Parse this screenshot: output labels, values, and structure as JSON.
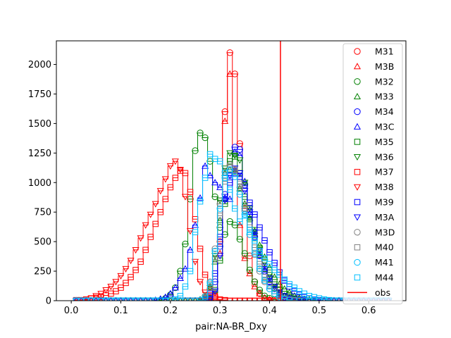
{
  "chart_data": {
    "type": "line",
    "title": "",
    "xlabel": "pair:NA-BR_Dxy",
    "ylabel": "",
    "xlim": [
      -0.03,
      0.675
    ],
    "ylim": [
      0,
      2200
    ],
    "x_ticks": [
      0.0,
      0.1,
      0.2,
      0.3,
      0.4,
      0.5,
      0.6
    ],
    "x_tick_labels": [
      "0.0",
      "0.1",
      "0.2",
      "0.3",
      "0.4",
      "0.5",
      "0.6"
    ],
    "y_ticks": [
      0,
      250,
      500,
      750,
      1000,
      1250,
      1500,
      1750,
      2000
    ],
    "y_tick_labels": [
      "0",
      "250",
      "500",
      "750",
      "1000",
      "1250",
      "1500",
      "1750",
      "2000"
    ],
    "grid": false,
    "legend_position": "upper right",
    "drawstyle": "steps-mid with markers",
    "bin_centers": [
      0.01,
      0.02,
      0.03,
      0.04,
      0.05,
      0.06,
      0.07,
      0.08,
      0.09,
      0.1,
      0.11,
      0.12,
      0.13,
      0.14,
      0.15,
      0.16,
      0.17,
      0.18,
      0.19,
      0.2,
      0.21,
      0.22,
      0.23,
      0.24,
      0.25,
      0.26,
      0.27,
      0.28,
      0.29,
      0.3,
      0.31,
      0.32,
      0.33,
      0.34,
      0.35,
      0.36,
      0.37,
      0.38,
      0.39,
      0.4,
      0.41,
      0.42,
      0.43,
      0.44,
      0.45,
      0.46,
      0.47,
      0.48,
      0.49,
      0.5,
      0.51,
      0.52,
      0.53,
      0.54,
      0.55,
      0.56,
      0.57,
      0.58,
      0.59,
      0.6,
      0.61,
      0.62,
      0.63,
      0.64
    ],
    "series": [
      {
        "name": "M31",
        "color": "#ff0000",
        "marker": "circle",
        "values": [
          0,
          0,
          0,
          0,
          0,
          0,
          0,
          0,
          0,
          0,
          0,
          0,
          0,
          0,
          0,
          0,
          0,
          0,
          0,
          0,
          0,
          0,
          0,
          0,
          0,
          0,
          0,
          5,
          20,
          500,
          1600,
          2100,
          1920,
          1330,
          780,
          380,
          160,
          60,
          20,
          5,
          0,
          0,
          0,
          0,
          0,
          0,
          0,
          0,
          0,
          0,
          0,
          0,
          0,
          0,
          0,
          0,
          0,
          0,
          0,
          0,
          0,
          0,
          0,
          0
        ]
      },
      {
        "name": "M3B",
        "color": "#ff0000",
        "marker": "triangle-up",
        "values": [
          0,
          0,
          0,
          0,
          0,
          0,
          0,
          0,
          0,
          0,
          0,
          0,
          0,
          0,
          0,
          0,
          0,
          0,
          0,
          0,
          0,
          0,
          0,
          0,
          0,
          0,
          0,
          10,
          60,
          400,
          1520,
          1920,
          1110,
          640,
          360,
          230,
          120,
          60,
          25,
          10,
          0,
          0,
          0,
          0,
          0,
          0,
          0,
          0,
          0,
          0,
          0,
          0,
          0,
          0,
          0,
          0,
          0,
          0,
          0,
          0,
          0,
          0,
          0,
          0
        ]
      },
      {
        "name": "M32",
        "color": "#008000",
        "marker": "circle",
        "values": [
          0,
          0,
          0,
          0,
          0,
          0,
          0,
          0,
          0,
          0,
          0,
          0,
          0,
          0,
          0,
          0,
          0,
          5,
          20,
          50,
          110,
          250,
          480,
          860,
          1270,
          1420,
          1380,
          1180,
          880,
          620,
          560,
          670,
          640,
          520,
          400,
          260,
          160,
          90,
          40,
          20,
          10,
          5,
          0,
          0,
          0,
          0,
          0,
          0,
          0,
          0,
          0,
          0,
          0,
          0,
          0,
          0,
          0,
          0,
          0,
          0,
          0,
          0,
          0,
          0
        ]
      },
      {
        "name": "M33",
        "color": "#008000",
        "marker": "triangle-up",
        "values": [
          0,
          0,
          0,
          0,
          0,
          0,
          0,
          0,
          0,
          0,
          0,
          0,
          0,
          0,
          0,
          0,
          0,
          0,
          0,
          0,
          0,
          0,
          0,
          0,
          0,
          10,
          40,
          120,
          330,
          680,
          1080,
          1110,
          1090,
          950,
          820,
          700,
          590,
          470,
          370,
          280,
          200,
          140,
          100,
          70,
          40,
          25,
          15,
          10,
          5,
          0,
          0,
          0,
          0,
          0,
          0,
          0,
          0,
          0,
          0,
          0,
          0,
          0,
          0
        ]
      },
      {
        "name": "M34",
        "color": "#0000ff",
        "marker": "circle",
        "values": [
          0,
          0,
          0,
          0,
          0,
          0,
          0,
          0,
          0,
          0,
          0,
          0,
          0,
          0,
          0,
          0,
          0,
          0,
          0,
          0,
          0,
          0,
          0,
          0,
          0,
          0,
          0,
          20,
          160,
          460,
          900,
          1060,
          1300,
          1280,
          980,
          730,
          540,
          380,
          250,
          160,
          100,
          60,
          30,
          15,
          5,
          0,
          0,
          0,
          0,
          0,
          0,
          0,
          0,
          0,
          0,
          0,
          0,
          0,
          0,
          0,
          0,
          0,
          0,
          0
        ]
      },
      {
        "name": "M3C",
        "color": "#0000ff",
        "marker": "triangle-up",
        "values": [
          0,
          0,
          0,
          0,
          0,
          0,
          0,
          0,
          0,
          0,
          0,
          0,
          0,
          0,
          0,
          0,
          5,
          15,
          30,
          60,
          110,
          190,
          270,
          430,
          640,
          870,
          1140,
          1060,
          1000,
          960,
          870,
          860,
          1260,
          1230,
          1010,
          770,
          560,
          380,
          260,
          160,
          100,
          60,
          40,
          25,
          15,
          10,
          5,
          0,
          0,
          0,
          0,
          0,
          0,
          0,
          0,
          0,
          0,
          0,
          0,
          0,
          0,
          0,
          0,
          0
        ]
      },
      {
        "name": "M35",
        "color": "#008000",
        "marker": "square",
        "values": [
          0,
          0,
          0,
          0,
          0,
          0,
          0,
          0,
          0,
          0,
          0,
          0,
          0,
          0,
          0,
          0,
          0,
          0,
          0,
          0,
          0,
          0,
          0,
          0,
          0,
          0,
          0,
          20,
          90,
          340,
          820,
          1180,
          1220,
          1080,
          880,
          690,
          530,
          390,
          270,
          180,
          110,
          70,
          40,
          20,
          10,
          5,
          0,
          0,
          0,
          0,
          0,
          0,
          0,
          0,
          0,
          0,
          0,
          0,
          0,
          0,
          0,
          0,
          0,
          0
        ]
      },
      {
        "name": "M36",
        "color": "#008000",
        "marker": "triangle-down",
        "values": [
          0,
          0,
          0,
          0,
          0,
          0,
          0,
          0,
          0,
          0,
          0,
          0,
          0,
          0,
          0,
          0,
          0,
          0,
          0,
          0,
          0,
          0,
          0,
          0,
          0,
          0,
          20,
          110,
          380,
          850,
          1120,
          1250,
          1230,
          1190,
          1000,
          780,
          600,
          440,
          320,
          220,
          140,
          90,
          60,
          40,
          20,
          10,
          5,
          0,
          0,
          0,
          0,
          0,
          0,
          0,
          0,
          0,
          0,
          0,
          0,
          0,
          0,
          0,
          0,
          0
        ]
      },
      {
        "name": "M37",
        "color": "#ff0000",
        "marker": "square",
        "values": [
          5,
          5,
          10,
          20,
          25,
          30,
          45,
          60,
          80,
          110,
          150,
          200,
          260,
          330,
          430,
          540,
          650,
          750,
          860,
          960,
          1040,
          1100,
          1080,
          920,
          690,
          440,
          220,
          90,
          30,
          10,
          5,
          0,
          0,
          0,
          0,
          0,
          0,
          0,
          0,
          0,
          0,
          0,
          0,
          0,
          0,
          0,
          0,
          0,
          0,
          0,
          0,
          0,
          0,
          0,
          0,
          0,
          0,
          0,
          0,
          0,
          0,
          0,
          0,
          0
        ]
      },
      {
        "name": "M38",
        "color": "#ff0000",
        "marker": "triangle-down",
        "values": [
          0,
          0,
          5,
          20,
          40,
          60,
          90,
          120,
          160,
          210,
          270,
          340,
          430,
          530,
          640,
          730,
          820,
          930,
          1030,
          1140,
          1180,
          1110,
          880,
          590,
          330,
          160,
          70,
          30,
          10,
          5,
          0,
          0,
          0,
          0,
          0,
          0,
          0,
          0,
          0,
          0,
          0,
          0,
          0,
          0,
          0,
          0,
          0,
          0,
          0,
          0,
          0,
          0,
          0,
          0,
          0,
          0,
          0,
          0,
          0,
          0,
          0,
          0,
          0,
          0
        ]
      },
      {
        "name": "M39",
        "color": "#0000ff",
        "marker": "square",
        "values": [
          0,
          0,
          0,
          0,
          0,
          0,
          0,
          0,
          0,
          0,
          0,
          0,
          0,
          0,
          0,
          0,
          0,
          0,
          0,
          0,
          0,
          0,
          0,
          0,
          0,
          0,
          10,
          60,
          230,
          540,
          860,
          1000,
          1080,
          1050,
          950,
          830,
          730,
          620,
          510,
          410,
          320,
          240,
          170,
          120,
          80,
          50,
          30,
          20,
          10,
          5,
          0,
          0,
          0,
          0,
          0,
          0,
          0,
          0,
          0,
          0,
          0,
          0,
          0,
          0
        ]
      },
      {
        "name": "M3A",
        "color": "#0000ff",
        "marker": "triangle-down",
        "values": [
          0,
          0,
          0,
          0,
          0,
          0,
          0,
          0,
          0,
          0,
          0,
          0,
          0,
          0,
          0,
          0,
          0,
          0,
          0,
          0,
          0,
          0,
          0,
          0,
          0,
          0,
          0,
          10,
          80,
          380,
          850,
          1060,
          1120,
          1080,
          930,
          750,
          580,
          420,
          290,
          190,
          120,
          70,
          40,
          20,
          10,
          5,
          0,
          0,
          0,
          0,
          0,
          0,
          0,
          0,
          0,
          0,
          0,
          0,
          0,
          0,
          0,
          0,
          0,
          0
        ]
      },
      {
        "name": "M3D",
        "color": "#808080",
        "marker": "circle",
        "values": [
          0,
          0,
          0,
          0,
          0,
          0,
          0,
          0,
          0,
          0,
          0,
          0,
          0,
          0,
          0,
          0,
          0,
          0,
          0,
          0,
          0,
          0,
          0,
          0,
          0,
          0,
          40,
          160,
          440,
          820,
          1090,
          1150,
          1100,
          960,
          760,
          560,
          390,
          250,
          160,
          100,
          60,
          30,
          15,
          5,
          0,
          0,
          0,
          0,
          0,
          0,
          0,
          0,
          0,
          0,
          0,
          0,
          0,
          0,
          0,
          0,
          0,
          0,
          0,
          0
        ]
      },
      {
        "name": "M40",
        "color": "#808080",
        "marker": "square",
        "values": [
          0,
          0,
          0,
          0,
          0,
          0,
          0,
          0,
          0,
          0,
          0,
          0,
          0,
          0,
          0,
          0,
          0,
          0,
          0,
          0,
          0,
          0,
          0,
          0,
          0,
          0,
          20,
          110,
          350,
          720,
          1010,
          1130,
          1110,
          990,
          810,
          620,
          450,
          310,
          200,
          130,
          80,
          40,
          20,
          10,
          5,
          0,
          0,
          0,
          0,
          0,
          0,
          0,
          0,
          0,
          0,
          0,
          0,
          0,
          0,
          0,
          0,
          0,
          0,
          0
        ]
      },
      {
        "name": "M41",
        "color": "#00bfff",
        "marker": "circle",
        "values": [
          0,
          0,
          0,
          0,
          0,
          0,
          0,
          0,
          0,
          0,
          0,
          0,
          0,
          0,
          0,
          0,
          0,
          0,
          0,
          0,
          0,
          0,
          0,
          0,
          0,
          5,
          30,
          150,
          420,
          780,
          1040,
          1110,
          1050,
          900,
          730,
          560,
          400,
          270,
          170,
          100,
          60,
          30,
          15,
          5,
          0,
          0,
          0,
          0,
          0,
          0,
          0,
          0,
          0,
          0,
          0,
          0,
          0,
          0,
          0,
          0,
          0,
          0,
          0,
          0
        ]
      },
      {
        "name": "M44",
        "color": "#00bfff",
        "marker": "square",
        "values": [
          0,
          0,
          0,
          0,
          0,
          0,
          0,
          0,
          0,
          0,
          0,
          0,
          0,
          0,
          0,
          0,
          0,
          0,
          0,
          0,
          10,
          40,
          120,
          250,
          580,
          840,
          1040,
          1240,
          1200,
          1180,
          1080,
          940,
          780,
          670,
          720,
          600,
          510,
          420,
          360,
          310,
          260,
          220,
          180,
          140,
          110,
          80,
          60,
          40,
          30,
          20,
          10,
          5,
          0,
          0,
          0,
          0,
          0,
          0,
          0,
          0,
          0,
          0,
          0,
          0,
          0,
          0
        ]
      }
    ],
    "vline": {
      "name": "obs",
      "color": "#ff0000",
      "x": 0.422
    }
  }
}
